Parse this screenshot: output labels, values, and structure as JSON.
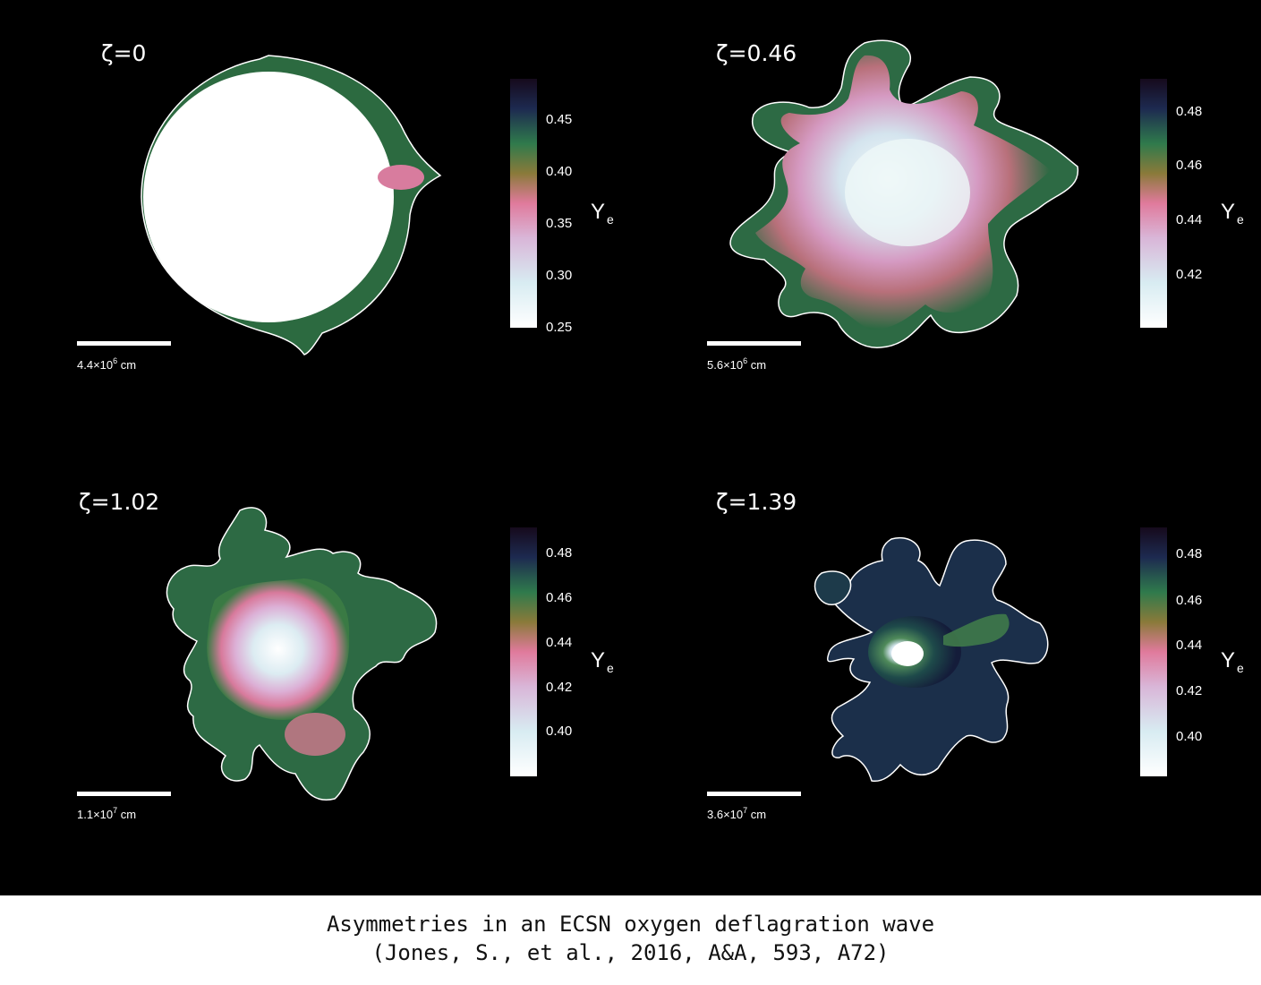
{
  "panels": [
    {
      "zeta": "ζ=0",
      "scale_value": "4.4×10",
      "scale_exp": "6",
      "scale_unit": "cm",
      "ticks": [
        "0.45",
        "0.40",
        "0.35",
        "0.30",
        "0.25"
      ],
      "colorbar_label": "Y",
      "colorbar_sub": "e"
    },
    {
      "zeta": "ζ=0.46",
      "scale_value": "5.6×10",
      "scale_exp": "6",
      "scale_unit": "cm",
      "ticks": [
        "0.48",
        "0.46",
        "0.44",
        "0.42"
      ],
      "colorbar_label": "Y",
      "colorbar_sub": "e"
    },
    {
      "zeta": "ζ=1.02",
      "scale_value": "1.1×10",
      "scale_exp": "7",
      "scale_unit": "cm",
      "ticks": [
        "0.48",
        "0.46",
        "0.44",
        "0.42",
        "0.40"
      ],
      "colorbar_label": "Y",
      "colorbar_sub": "e"
    },
    {
      "zeta": "ζ=1.39",
      "scale_value": "3.6×10",
      "scale_exp": "7",
      "scale_unit": "cm",
      "ticks": [
        "0.48",
        "0.46",
        "0.44",
        "0.42",
        "0.40"
      ],
      "colorbar_label": "Y",
      "colorbar_sub": "e"
    }
  ],
  "colormap": [
    "#ffffff",
    "#d9ecf0",
    "#d8b8d8",
    "#e07a9c",
    "#7a8a3a",
    "#2a7a4a",
    "#1a2a4a",
    "#120818"
  ],
  "caption": {
    "line1": "Asymmetries in an ECSN oxygen deflagration wave",
    "line2": "(Jones, S., et al., 2016, A&A, 593, A72)"
  }
}
